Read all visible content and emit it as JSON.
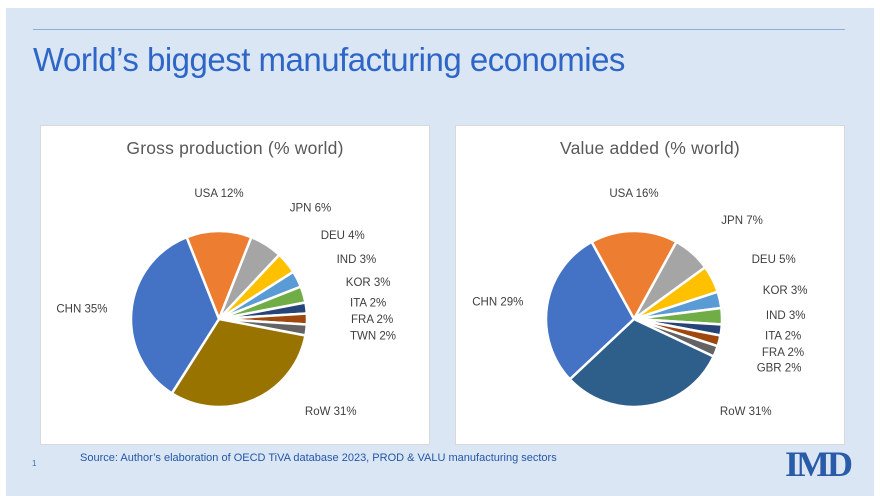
{
  "slide": {
    "title": "World’s biggest manufacturing economies",
    "page_number": "1",
    "source_note": "Source: Author’s elaboration of OECD   TiVA database 2023, PROD & VALU manufacturing sectors",
    "logo": "IMD",
    "colors": {
      "slide_background": "#DBE6F4",
      "title_text": "#2E66C8",
      "divider_line": "#8AAEDD",
      "panel_background": "#FFFFFF",
      "panel_border": "#D9D9D9",
      "chart_title_text": "#595959",
      "slice_label_text": "#404040",
      "source_text": "#2356A8",
      "logo_text": "#2A5BA8"
    }
  },
  "chart_data": [
    {
      "type": "pie",
      "title": "Gross production (% world)",
      "value_unit": "% of world gross production",
      "direction": "clockwise",
      "first_slice_centered_at_top": true,
      "slice_label_format": "LABEL VALUE%",
      "slices": [
        {
          "label": "USA",
          "value": 12,
          "color": "#ED7D31"
        },
        {
          "label": "JPN",
          "value": 6,
          "color": "#A5A5A5"
        },
        {
          "label": "DEU",
          "value": 4,
          "color": "#FFC000"
        },
        {
          "label": "IND",
          "value": 3,
          "color": "#5B9BD5"
        },
        {
          "label": "KOR",
          "value": 3,
          "color": "#70AD47"
        },
        {
          "label": "ITA",
          "value": 2,
          "color": "#264478"
        },
        {
          "label": "FRA",
          "value": 2,
          "color": "#9E480E"
        },
        {
          "label": "TWN",
          "value": 2,
          "color": "#636363"
        },
        {
          "label": "RoW",
          "value": 31,
          "color": "#997300"
        },
        {
          "label": "CHN",
          "value": 35,
          "color": "#4472C4"
        }
      ]
    },
    {
      "type": "pie",
      "title": "Value added (% world)",
      "value_unit": "% of world value added",
      "direction": "clockwise",
      "first_slice_centered_at_top": true,
      "slice_label_format": "LABEL VALUE%",
      "slices": [
        {
          "label": "USA",
          "value": 16,
          "color": "#ED7D31"
        },
        {
          "label": "JPN",
          "value": 7,
          "color": "#A5A5A5"
        },
        {
          "label": "DEU",
          "value": 5,
          "color": "#FFC000"
        },
        {
          "label": "KOR",
          "value": 3,
          "color": "#5B9BD5"
        },
        {
          "label": "IND",
          "value": 3,
          "color": "#70AD47"
        },
        {
          "label": "ITA",
          "value": 2,
          "color": "#264478"
        },
        {
          "label": "FRA",
          "value": 2,
          "color": "#9E480E"
        },
        {
          "label": "GBR",
          "value": 2,
          "color": "#636363"
        },
        {
          "label": "RoW",
          "value": 31,
          "color": "#2E5E8A"
        },
        {
          "label": "CHN",
          "value": 29,
          "color": "#4472C4"
        }
      ]
    }
  ]
}
